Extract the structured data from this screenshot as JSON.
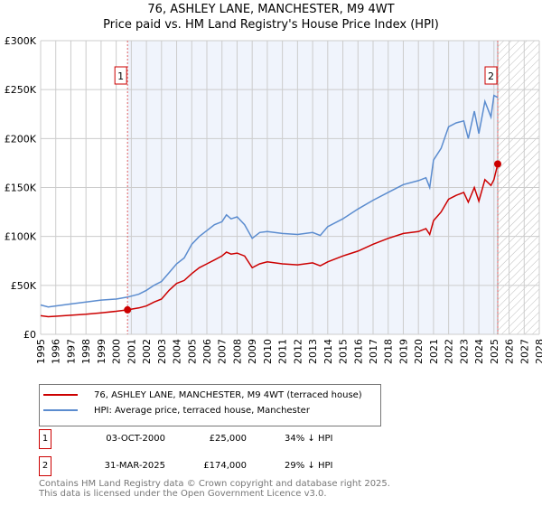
{
  "chart_data": {
    "type": "line",
    "title": "76, ASHLEY LANE, MANCHESTER, M9 4WT",
    "subtitle": "Price paid vs. HM Land Registry's House Price Index (HPI)",
    "xlim": [
      1995,
      2028
    ],
    "ylim": [
      0,
      300000
    ],
    "yticks": [
      {
        "v": 0,
        "label": "£0"
      },
      {
        "v": 50000,
        "label": "£50K"
      },
      {
        "v": 100000,
        "label": "£100K"
      },
      {
        "v": 150000,
        "label": "£150K"
      },
      {
        "v": 200000,
        "label": "£200K"
      },
      {
        "v": 250000,
        "label": "£250K"
      },
      {
        "v": 300000,
        "label": "£300K"
      }
    ],
    "xticks": [
      "1995",
      "1996",
      "1997",
      "1998",
      "1999",
      "2000",
      "2001",
      "2002",
      "2003",
      "2004",
      "2005",
      "2006",
      "2007",
      "2008",
      "2009",
      "2010",
      "2011",
      "2012",
      "2013",
      "2014",
      "2015",
      "2016",
      "2017",
      "2018",
      "2019",
      "2020",
      "2021",
      "2022",
      "2023",
      "2024",
      "2025",
      "2026",
      "2027",
      "2028"
    ],
    "grid": true,
    "series": [
      {
        "name": "76, ASHLEY LANE, MANCHESTER, M9 4WT (terraced house)",
        "color": "#cc0000",
        "x": [
          1995,
          1995.5,
          1996,
          1997,
          1998,
          1999,
          2000,
          2000.75,
          2001.5,
          2002,
          2002.5,
          2003,
          2003.5,
          2004,
          2004.5,
          2005,
          2005.5,
          2006,
          2006.5,
          2007,
          2007.3,
          2007.6,
          2008,
          2008.5,
          2009,
          2009.5,
          2010,
          2011,
          2012,
          2013,
          2013.5,
          2014,
          2015,
          2016,
          2017,
          2018,
          2019,
          2020,
          2020.5,
          2020.75,
          2021,
          2021.5,
          2022,
          2022.5,
          2023,
          2023.3,
          2023.7,
          2024,
          2024.4,
          2024.8,
          2025,
          2025.25
        ],
        "y": [
          19000,
          18000,
          18500,
          19500,
          20500,
          22000,
          23500,
          25000,
          27000,
          29000,
          33000,
          36000,
          45000,
          52000,
          55000,
          62000,
          68000,
          72000,
          76000,
          80000,
          84000,
          82000,
          83000,
          80000,
          68000,
          72000,
          74000,
          72000,
          71000,
          73000,
          70000,
          74000,
          80000,
          85000,
          92000,
          98000,
          103000,
          105000,
          108000,
          102000,
          116000,
          125000,
          138000,
          142000,
          145000,
          135000,
          150000,
          136000,
          158000,
          152000,
          158000,
          174000
        ]
      },
      {
        "name": "HPI: Average price, terraced house, Manchester",
        "color": "#5b8ccf",
        "x": [
          1995,
          1995.5,
          1996,
          1997,
          1998,
          1999,
          2000,
          2000.75,
          2001.5,
          2002,
          2002.5,
          2003,
          2003.5,
          2004,
          2004.5,
          2005,
          2005.5,
          2006,
          2006.5,
          2007,
          2007.3,
          2007.6,
          2008,
          2008.5,
          2009,
          2009.5,
          2010,
          2011,
          2012,
          2013,
          2013.5,
          2014,
          2015,
          2016,
          2017,
          2018,
          2019,
          2020,
          2020.5,
          2020.75,
          2021,
          2021.5,
          2022,
          2022.5,
          2023,
          2023.3,
          2023.7,
          2024,
          2024.4,
          2024.8,
          2025,
          2025.25
        ],
        "y": [
          30000,
          28000,
          29000,
          31000,
          33000,
          35000,
          36000,
          38000,
          41000,
          45000,
          50000,
          54000,
          63000,
          72000,
          78000,
          92000,
          100000,
          106000,
          112000,
          115000,
          122000,
          118000,
          120000,
          112000,
          98000,
          104000,
          105000,
          103000,
          102000,
          104000,
          101000,
          110000,
          118000,
          128000,
          137000,
          145000,
          153000,
          157000,
          160000,
          150000,
          178000,
          190000,
          212000,
          216000,
          218000,
          200000,
          228000,
          205000,
          238000,
          222000,
          244000,
          242000
        ]
      }
    ],
    "annotations": [
      {
        "label": "1",
        "x": 2000.75,
        "y": 25000
      },
      {
        "label": "2",
        "x": 2025.25,
        "y": 174000
      }
    ],
    "shaded_range": [
      2000.75,
      2025.25
    ],
    "hatched_from": 2025.25
  },
  "legend": {
    "property": "76, ASHLEY LANE, MANCHESTER, M9 4WT (terraced house)",
    "hpi": "HPI: Average price, terraced house, Manchester"
  },
  "transactions": [
    {
      "num": "1",
      "date": "03-OCT-2000",
      "price": "£25,000",
      "hpi": "34% ↓ HPI"
    },
    {
      "num": "2",
      "date": "31-MAR-2025",
      "price": "£174,000",
      "hpi": "29% ↓ HPI"
    }
  ],
  "footer": {
    "line1": "Contains HM Land Registry data © Crown copyright and database right 2025.",
    "line2": "This data is licensed under the Open Government Licence v3.0."
  }
}
